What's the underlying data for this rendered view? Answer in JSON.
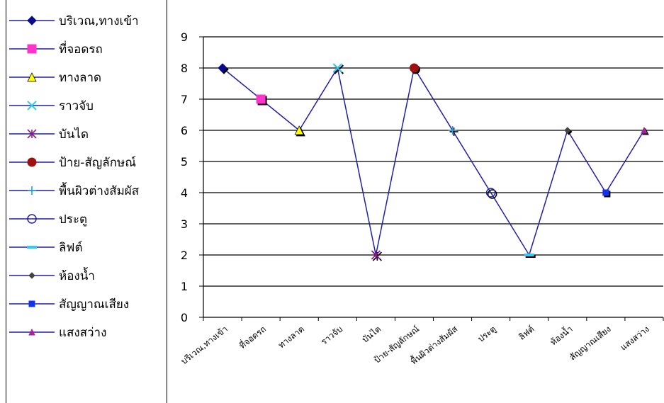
{
  "chart_data": {
    "type": "line",
    "categories": [
      "บริเวณ,ทางเข้า",
      "ที่จอดรถ",
      "ทางลาด",
      "ราวจับ",
      "บันได",
      "ป้าย-สัญลักษณ์",
      "พื้นผิวต่างสัมผัส",
      "ประตู",
      "ลิฟต์",
      "ห้องน้ำ",
      "สัญญาณเสียง",
      "แสงสว่าง"
    ],
    "values": [
      8,
      7,
      6,
      8,
      2,
      8,
      6,
      4,
      2,
      6,
      4,
      6
    ],
    "ylim": [
      0,
      9
    ],
    "yticks": [
      "0",
      "1",
      "2",
      "3",
      "4",
      "5",
      "6",
      "7",
      "8",
      "9"
    ],
    "grid": "horizontal",
    "legend_position": "left",
    "line_color": "#1f1fa8",
    "series": [
      {
        "name": "บริเวณ,ทางเข้า",
        "marker": "diamond",
        "color": "#0a0a8c"
      },
      {
        "name": "ที่จอดรถ",
        "marker": "square",
        "color": "#ff33cc"
      },
      {
        "name": "ทางลาด",
        "marker": "triangle",
        "color": "#ffff00"
      },
      {
        "name": "ราวจับ",
        "marker": "x",
        "color": "#33ccee"
      },
      {
        "name": "บันได",
        "marker": "star",
        "color": "#8b1a8b"
      },
      {
        "name": "ป้าย-สัญลักษณ์",
        "marker": "circle",
        "color": "#a01010"
      },
      {
        "name": "พื้นผิวต่างสัมผัส",
        "marker": "plus",
        "color": "#1f9fdd"
      },
      {
        "name": "ประตู",
        "marker": "open-circle",
        "color": "#2020aa"
      },
      {
        "name": "ลิฟต์",
        "marker": "dash",
        "color": "#33ccee"
      },
      {
        "name": "ห้องน้ำ",
        "marker": "small-diamond",
        "color": "#444444"
      },
      {
        "name": "สัญญาณเสียง",
        "marker": "small-square",
        "color": "#1133ee"
      },
      {
        "name": "แสงสว่าง",
        "marker": "small-triangle",
        "color": "#aa2299"
      }
    ]
  }
}
